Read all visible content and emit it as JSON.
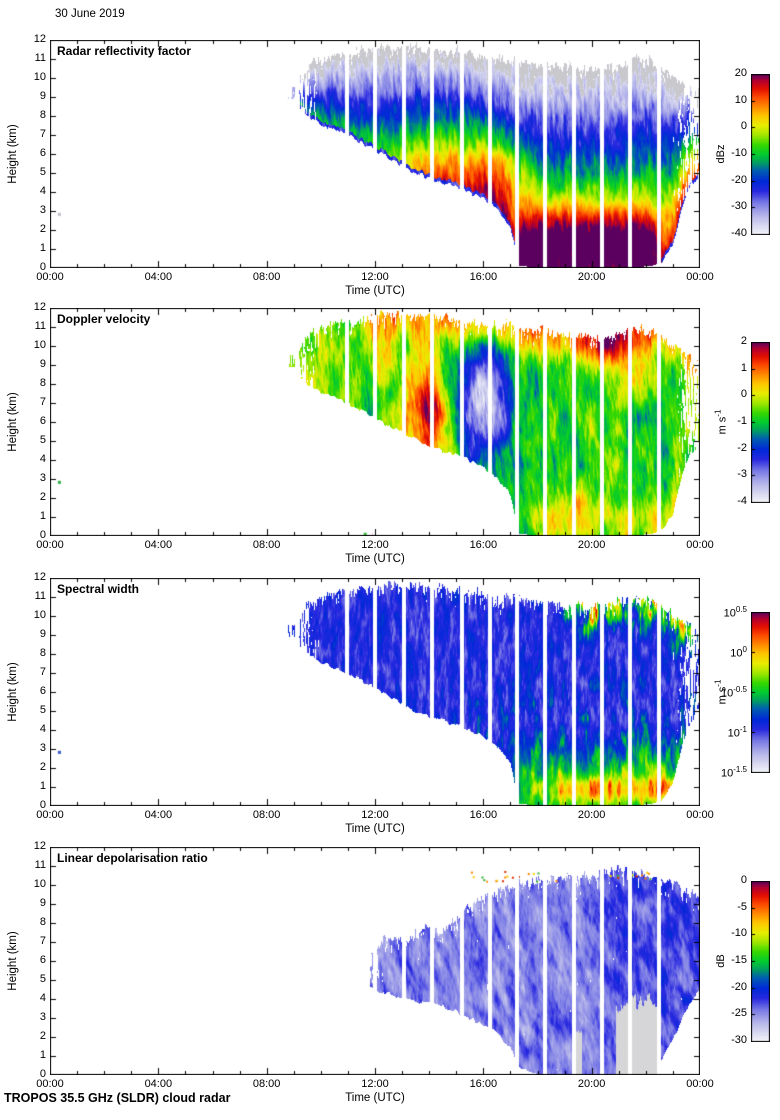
{
  "chart_data": {
    "type": "heatmap",
    "title": "30 June 2019",
    "instrument_footer": "TROPOS 35.5 GHz (SLDR) cloud radar",
    "x_axis": {
      "label": "Time (UTC)",
      "range_hours": [
        0,
        24
      ],
      "major_tick_hours": [
        0,
        4,
        8,
        12,
        16,
        20,
        24
      ],
      "tick_labels": [
        "00:00",
        "04:00",
        "08:00",
        "12:00",
        "16:00",
        "20:00",
        "00:00"
      ],
      "minor_tick_interval_hours": 1
    },
    "y_axis": {
      "label": "Height (km)",
      "range_km": [
        0,
        12
      ],
      "tick_km": [
        0,
        1,
        2,
        3,
        4,
        5,
        6,
        7,
        8,
        9,
        10,
        11,
        12
      ]
    },
    "colormap_stops": [
      [
        0.0,
        "#f4f4fa"
      ],
      [
        0.05,
        "#dcdcf2"
      ],
      [
        0.12,
        "#b4b4ea"
      ],
      [
        0.2,
        "#7878e6"
      ],
      [
        0.27,
        "#2828e0"
      ],
      [
        0.33,
        "#0028d8"
      ],
      [
        0.4,
        "#0060b0"
      ],
      [
        0.45,
        "#00a060"
      ],
      [
        0.5,
        "#00cc30"
      ],
      [
        0.56,
        "#38d800"
      ],
      [
        0.62,
        "#a0e800"
      ],
      [
        0.68,
        "#e8ee00"
      ],
      [
        0.74,
        "#ffc800"
      ],
      [
        0.8,
        "#ff8800"
      ],
      [
        0.86,
        "#fc4800"
      ],
      [
        0.91,
        "#e41000"
      ],
      [
        0.96,
        "#b40030"
      ],
      [
        1.0,
        "#5c0060"
      ]
    ],
    "data_gap_times_hours": [
      10.89,
      11.93,
      13.0,
      14.03,
      15.14,
      16.17,
      17.17,
      18.2,
      19.27,
      20.31,
      21.34,
      22.41
    ],
    "data_gap_duration_hours": 0.16,
    "early_blob": {
      "t0": 8.78,
      "t1": 9.06,
      "base": 8.9,
      "top": 9.55
    },
    "cloud_envelope_hours_base_top_km": [
      [
        9.2,
        8.4,
        10.0
      ],
      [
        9.6,
        7.9,
        10.7
      ],
      [
        10.0,
        7.6,
        11.0
      ],
      [
        10.5,
        7.3,
        11.2
      ],
      [
        11.0,
        7.0,
        11.3
      ],
      [
        11.5,
        6.6,
        11.4
      ],
      [
        12.0,
        6.2,
        11.5
      ],
      [
        12.5,
        5.8,
        11.6
      ],
      [
        13.0,
        5.4,
        11.65
      ],
      [
        13.5,
        5.0,
        11.6
      ],
      [
        14.0,
        4.7,
        11.5
      ],
      [
        14.5,
        4.5,
        11.4
      ],
      [
        15.0,
        4.3,
        11.3
      ],
      [
        15.5,
        4.0,
        11.2
      ],
      [
        16.0,
        3.7,
        11.1
      ],
      [
        16.5,
        3.1,
        11.0
      ],
      [
        17.0,
        2.2,
        10.9
      ],
      [
        17.3,
        0.1,
        10.9
      ],
      [
        18.0,
        0.05,
        10.7
      ],
      [
        19.0,
        0.05,
        10.6
      ],
      [
        20.0,
        0.05,
        10.5
      ],
      [
        20.8,
        0.05,
        10.6
      ],
      [
        21.6,
        0.05,
        10.9
      ],
      [
        22.2,
        0.1,
        10.8
      ],
      [
        22.6,
        0.3,
        10.5
      ],
      [
        23.0,
        1.2,
        10.0
      ],
      [
        23.3,
        3.0,
        9.7
      ],
      [
        23.6,
        4.3,
        9.5
      ],
      [
        24.0,
        4.8,
        9.2
      ]
    ],
    "ldr_envelope_hours_base_top_km": [
      [
        11.8,
        4.6,
        6.4
      ],
      [
        12.3,
        4.3,
        7.0
      ],
      [
        12.8,
        4.2,
        7.4
      ],
      [
        13.2,
        4.0,
        7.0
      ],
      [
        13.6,
        3.9,
        7.6
      ],
      [
        14.0,
        3.8,
        7.9
      ],
      [
        14.4,
        3.6,
        7.3
      ],
      [
        15.0,
        3.3,
        8.3
      ],
      [
        15.5,
        3.0,
        8.8
      ],
      [
        16.0,
        2.6,
        9.4
      ],
      [
        16.5,
        2.2,
        9.6
      ],
      [
        17.0,
        1.5,
        9.9
      ],
      [
        17.4,
        0.3,
        10.0
      ],
      [
        18.0,
        0.05,
        10.2
      ],
      [
        19.0,
        0.05,
        10.4
      ],
      [
        20.0,
        0.05,
        10.5
      ],
      [
        21.0,
        0.05,
        10.8
      ],
      [
        22.0,
        0.05,
        10.5
      ],
      [
        22.5,
        0.5,
        10.3
      ],
      [
        23.0,
        1.8,
        10.1
      ],
      [
        23.4,
        3.2,
        9.8
      ],
      [
        24.0,
        4.5,
        9.3
      ]
    ],
    "panels": [
      {
        "id": "reflectivity",
        "title": "Radar reflectivity factor",
        "colorbar": {
          "unit": "dBz",
          "min": -40,
          "max": 20,
          "ticks": [
            {
              "v": 20,
              "label": "20"
            },
            {
              "v": 10,
              "label": "10"
            },
            {
              "v": 0,
              "label": "0"
            },
            {
              "v": -10,
              "label": "-10"
            },
            {
              "v": -20,
              "label": "-20"
            },
            {
              "v": -30,
              "label": "-30"
            },
            {
              "v": -40,
              "label": "-40"
            }
          ]
        },
        "model": {
          "type": "refl"
        },
        "dots": [
          {
            "t": 0.33,
            "km": 2.85,
            "color": "#c0c0c8"
          }
        ]
      },
      {
        "id": "velocity",
        "title": "Doppler velocity",
        "colorbar": {
          "unit": "m s^-1",
          "min": -4,
          "max": 2,
          "ticks": [
            {
              "v": 2,
              "label": "2"
            },
            {
              "v": 1,
              "label": "1"
            },
            {
              "v": 0,
              "label": "0"
            },
            {
              "v": -1,
              "label": "-1"
            },
            {
              "v": -2,
              "label": "-2"
            },
            {
              "v": -3,
              "label": "-3"
            },
            {
              "v": -4,
              "label": "-4"
            }
          ]
        },
        "model": {
          "type": "vel",
          "features": [
            {
              "t": 14.0,
              "st": 0.55,
              "km": 6.5,
              "sk": 2.0,
              "amp": 2.6
            },
            {
              "t": 15.95,
              "st": 0.7,
              "km": 7.0,
              "sk": 2.2,
              "amp": -2.9
            },
            {
              "t": 12.3,
              "st": 0.4,
              "km": 9.5,
              "sk": 1.3,
              "amp": 1.2
            },
            {
              "t": 20.9,
              "st": 0.8,
              "km": 9.8,
              "sk": 1.2,
              "amp": 1.2
            }
          ]
        },
        "dots": [
          {
            "t": 0.33,
            "km": 2.85,
            "color": "#30b048"
          },
          {
            "t": 11.62,
            "km": 0.12,
            "color": "#38b838"
          },
          {
            "t": 11.95,
            "km": 0.12,
            "color": "#c050c0"
          }
        ]
      },
      {
        "id": "spectral-width",
        "title": "Spectral width",
        "colorbar": {
          "unit": "m s^-1",
          "min": -1.5,
          "max": 0.5,
          "log": true,
          "ticks": [
            {
              "v": 0.5,
              "label": "10^0.5"
            },
            {
              "v": 0,
              "label": "10^0"
            },
            {
              "v": -0.5,
              "label": "10^-0.5"
            },
            {
              "v": -1,
              "label": "10^-1"
            },
            {
              "v": -1.5,
              "label": "10^-1.5"
            }
          ]
        },
        "model": {
          "type": "sw"
        },
        "dots": [
          {
            "t": 0.33,
            "km": 2.85,
            "color": "#3858d0"
          }
        ]
      },
      {
        "id": "ldr",
        "title": "Linear depolarisation ratio",
        "colorbar": {
          "unit": "dB",
          "min": -30,
          "max": 0,
          "ticks": [
            {
              "v": 0,
              "label": "0"
            },
            {
              "v": -5,
              "label": "-5"
            },
            {
              "v": -10,
              "label": "-10"
            },
            {
              "v": -15,
              "label": "-15"
            },
            {
              "v": -20,
              "label": "-20"
            },
            {
              "v": -25,
              "label": "-25"
            },
            {
              "v": -30,
              "label": "-30"
            }
          ]
        },
        "model": {
          "type": "ldr"
        },
        "grey_patches": [
          {
            "t0": 20.9,
            "t1": 22.55,
            "kmax": 4.0
          },
          {
            "t0": 19.3,
            "t1": 19.65,
            "kmax": 2.3
          }
        ],
        "top_speckles": {
          "count": 30,
          "km_min": 10.2,
          "km_span": 0.6,
          "colors": [
            "#ff8800",
            "#e03000",
            "#30b030",
            "#ffcc00"
          ]
        },
        "dots": []
      }
    ]
  }
}
